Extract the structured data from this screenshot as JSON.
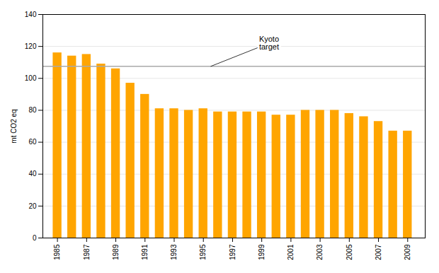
{
  "chart_data": {
    "type": "bar",
    "x": [
      1985,
      1986,
      1987,
      1988,
      1989,
      1990,
      1991,
      1992,
      1993,
      1994,
      1995,
      1996,
      1997,
      1998,
      1999,
      2000,
      2001,
      2002,
      2003,
      2004,
      2005,
      2006,
      2007,
      2008,
      2009
    ],
    "values": [
      116,
      114,
      115,
      109,
      106,
      97,
      90,
      81,
      81,
      80,
      81,
      79,
      79,
      79,
      79,
      77,
      77,
      80,
      80,
      80,
      78,
      76,
      73,
      67,
      67
    ],
    "color": "#FFA500",
    "xlim": [
      1984.0,
      2010.2
    ],
    "xticks": [
      1985,
      1987,
      1989,
      1991,
      1993,
      1995,
      1997,
      1999,
      2001,
      2003,
      2005,
      2007,
      2009
    ],
    "ylim": [
      0,
      140
    ],
    "yticks": [
      0,
      20,
      40,
      60,
      80,
      100,
      120,
      140
    ],
    "ylabel": "mt CO2 eq",
    "grid": true,
    "reference_line": {
      "y": 107.5,
      "color": "#AAAAAA"
    },
    "annotations": [
      {
        "text": "Kyoto\ntarget",
        "x": 1999.5,
        "y": 122,
        "arrow_x": 1995.5,
        "arrow_y": 107.5
      }
    ]
  }
}
